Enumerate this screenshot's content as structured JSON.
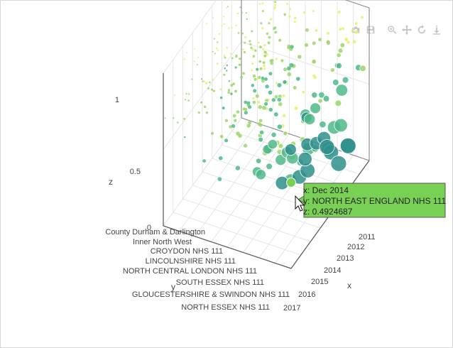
{
  "modebar": {
    "buttons": [
      {
        "name": "camera-icon",
        "title": "Download plot as a png"
      },
      {
        "name": "save-icon",
        "title": "Save and edit plot in cloud"
      },
      {
        "name": "zoom-icon",
        "title": "Zoom"
      },
      {
        "name": "pan-icon",
        "title": "Pan"
      },
      {
        "name": "orbit-rotation-icon",
        "title": "Orbital rotation"
      },
      {
        "name": "turntable-icon",
        "title": "Turntable rotation"
      }
    ]
  },
  "chart_data": {
    "type": "scatter",
    "dimensions": 3,
    "title": "",
    "xlabel": "x",
    "ylabel": "y",
    "zlabel": "z",
    "x_ticks": [
      "2011",
      "2012",
      "2013",
      "2014",
      "2015",
      "2016",
      "2017"
    ],
    "y_ticks": [
      "County Durham & Darlington",
      "Inner North West",
      "CROYDON NHS 111",
      "LINCOLNSHIRE NHS 111",
      "NORTH CENTRAL LONDON NHS 111",
      "SOUTH ESSEX NHS 111",
      "GLOUCESTERSHIRE & SWINDON NHS 111",
      "NORTH ESSEX NHS 111"
    ],
    "z_ticks": [
      "0",
      "0.5",
      "1"
    ],
    "zlim": [
      0,
      1
    ],
    "colorscale": [
      "#3b5b8a",
      "#2f8f8c",
      "#4fb98a",
      "#9bd66a",
      "#e8ef6a"
    ],
    "grid": true,
    "hover": {
      "x_line": "x: Dec 2014",
      "y_line": "y: NORTH EAST ENGLAND NHS 111",
      "z_line": "z: 0.4924687",
      "background": "#78d155"
    }
  }
}
